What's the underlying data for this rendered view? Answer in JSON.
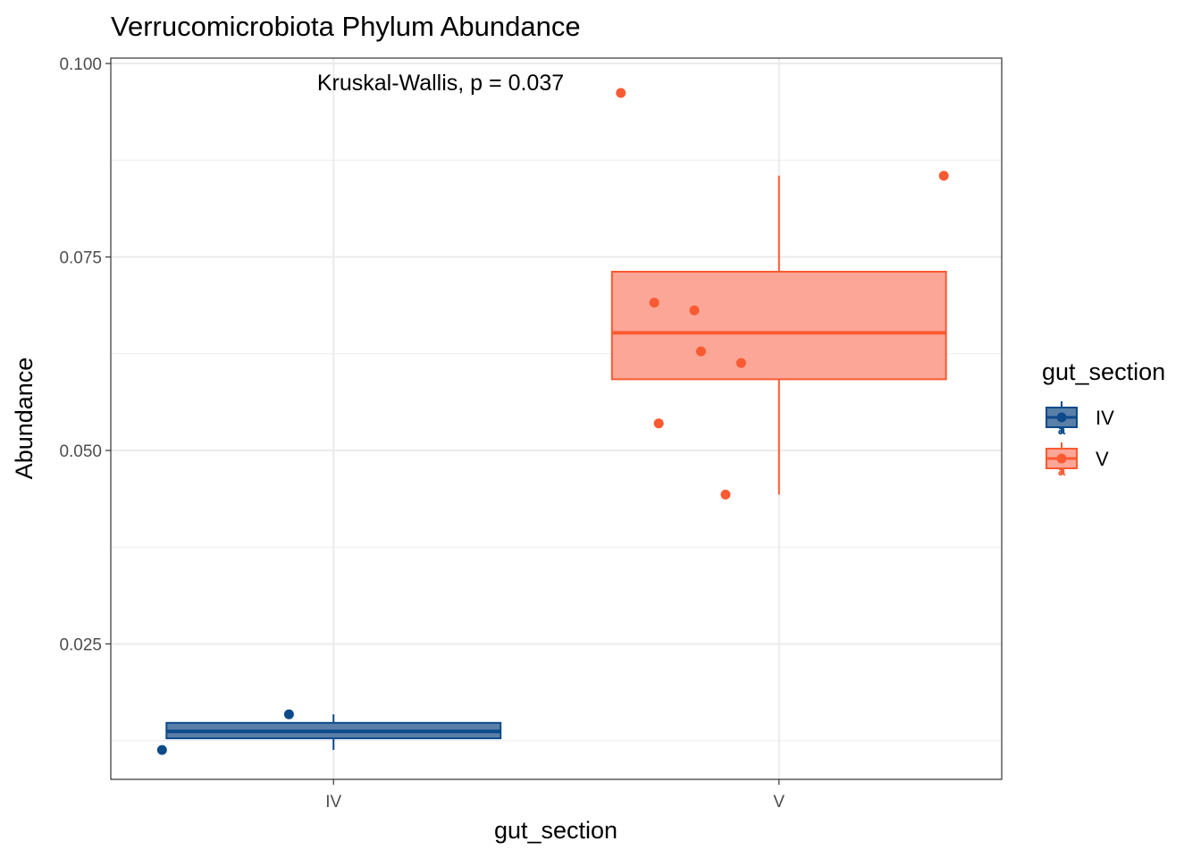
{
  "chart_data": {
    "type": "box",
    "title": "Verrucomicrobiota Phylum Abundance",
    "xlabel": "gut_section",
    "ylabel": "Abundance",
    "annotation": "Kruskal-Wallis, p = 0.037",
    "categories": [
      "IV",
      "V"
    ],
    "ylim": [
      0.0075,
      0.1007
    ],
    "yticks": [
      0.025,
      0.05,
      0.075,
      0.1
    ],
    "yticklabels": [
      "0.025",
      "0.050",
      "0.075",
      "0.100"
    ],
    "grid": true,
    "legend": {
      "title": "gut_section",
      "position": "right",
      "key_glyph": "a"
    },
    "series": [
      {
        "name": "IV",
        "color": "#0D4A8A",
        "fill": "#5A7FA8",
        "box": {
          "min": 0.0113,
          "q1": 0.0128,
          "median": 0.0137,
          "q3": 0.0148,
          "max": 0.0159
        },
        "points": [
          {
            "jitter": -0.385,
            "y": 0.0113
          },
          {
            "jitter": -0.1,
            "y": 0.0159
          }
        ]
      },
      {
        "name": "V",
        "color": "#FA5A32",
        "fill": "#FCA697",
        "box": {
          "min": 0.0443,
          "q1": 0.0592,
          "median": 0.0652,
          "q3": 0.0731,
          "max": 0.0855
        },
        "points": [
          {
            "jitter": -0.355,
            "y": 0.0962
          },
          {
            "jitter": 0.37,
            "y": 0.0855
          },
          {
            "jitter": -0.28,
            "y": 0.0691
          },
          {
            "jitter": -0.19,
            "y": 0.0681
          },
          {
            "jitter": -0.175,
            "y": 0.0628
          },
          {
            "jitter": -0.085,
            "y": 0.0613
          },
          {
            "jitter": -0.27,
            "y": 0.0535
          },
          {
            "jitter": -0.12,
            "y": 0.0443
          }
        ]
      }
    ]
  }
}
